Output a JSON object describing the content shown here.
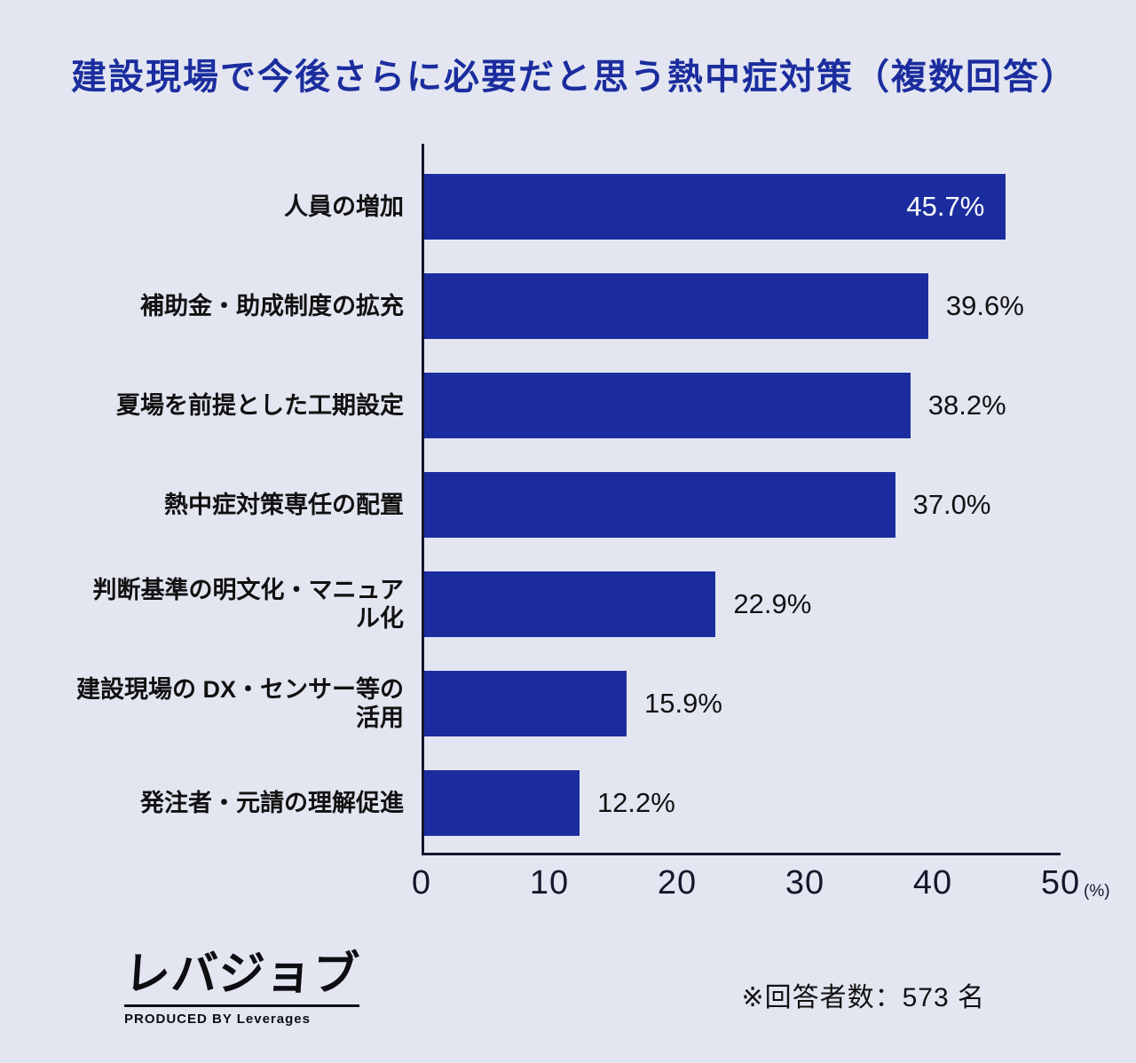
{
  "title": "建設現場で今後さらに必要だと思う熱中症対策（複数回答）",
  "chart_data": {
    "type": "bar",
    "orientation": "horizontal",
    "title": "建設現場で今後さらに必要だと思う熱中症対策（複数回答）",
    "categories": [
      "人員の増加",
      "補助金・助成制度の拡充",
      "夏場を前提とした工期設定",
      "熱中症対策専任の配置",
      "判断基準の明文化・マニュアル化",
      "建設現場の DX・センサー等の活用",
      "発注者・元請の理解促進"
    ],
    "values": [
      45.7,
      39.6,
      38.2,
      37.0,
      22.9,
      15.9,
      12.2
    ],
    "value_labels": [
      "45.7%",
      "39.6%",
      "38.2%",
      "37.0%",
      "22.9%",
      "15.9%",
      "12.2%"
    ],
    "value_label_inside": [
      true,
      false,
      false,
      false,
      false,
      false,
      false
    ],
    "xlim": [
      0,
      50
    ],
    "x_ticks": [
      "0",
      "10",
      "20",
      "30",
      "40",
      "50"
    ],
    "x_unit": "(%)",
    "bar_color": "#1b2d9e",
    "grid": false,
    "legend": "none"
  },
  "footer": {
    "logo_text": "レバジョブ",
    "logo_subtext": "PRODUCED BY Leverages",
    "note": "※回答者数：573 名"
  },
  "colors": {
    "background": "#e3e6f1",
    "bar": "#1b2d9e",
    "title": "#1b2d9e",
    "axis": "#15162b"
  }
}
